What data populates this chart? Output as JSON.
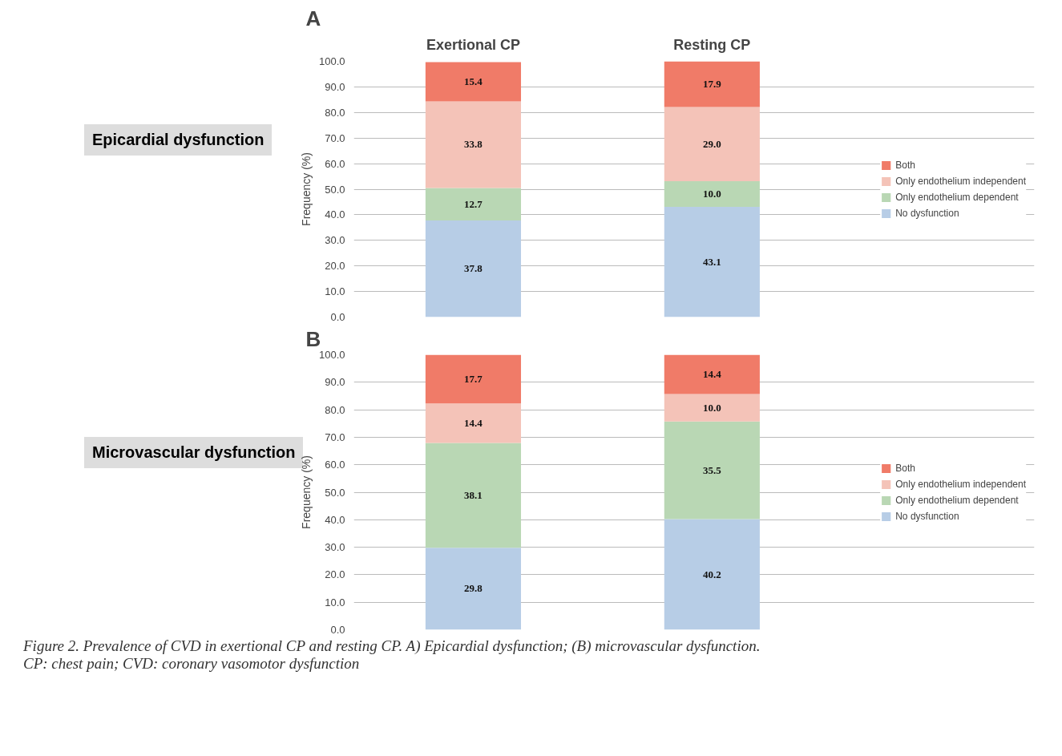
{
  "chart_data": [
    {
      "type": "bar",
      "stacked": true,
      "title": "A",
      "subtitle": "Epicardial dysfunction",
      "ylabel": "Frequency (%)",
      "categories": [
        "Exertional CP",
        "Resting CP"
      ],
      "ylim": [
        0,
        100
      ],
      "yticks": [
        {
          "value": 0,
          "label": "0.0"
        },
        {
          "value": 10,
          "label": "10.0"
        },
        {
          "value": 20,
          "label": "20.0"
        },
        {
          "value": 30,
          "label": "30.0"
        },
        {
          "value": 40,
          "label": "40.0"
        },
        {
          "value": 50,
          "label": "50.0"
        },
        {
          "value": 60,
          "label": "60.0"
        },
        {
          "value": 70,
          "label": "70.0"
        },
        {
          "value": 80,
          "label": "80.0"
        },
        {
          "value": 90,
          "label": "90.0"
        },
        {
          "value": 100,
          "label": "100.0"
        }
      ],
      "grid": "y",
      "legend": "right",
      "series": [
        {
          "name": "No dysfunction",
          "color": "#b7cde6",
          "values": [
            37.8,
            43.1
          ],
          "value_labels": [
            "37.8",
            "43.1"
          ]
        },
        {
          "name": "Only endothelium dependent",
          "color": "#b9d7b4",
          "values": [
            12.7,
            10.0
          ],
          "value_labels": [
            "12.7",
            "10.0"
          ]
        },
        {
          "name": "Only endothelium independent",
          "color": "#f4c3b8",
          "values": [
            33.8,
            29.0
          ],
          "value_labels": [
            "33.8",
            "29.0"
          ]
        },
        {
          "name": "Both",
          "color": "#f07b68",
          "values": [
            15.4,
            17.9
          ],
          "value_labels": [
            "15.4",
            "17.9"
          ]
        }
      ]
    },
    {
      "type": "bar",
      "stacked": true,
      "title": "B",
      "subtitle": "Microvascular dysfunction",
      "ylabel": "Frequency (%)",
      "categories": [
        null,
        null
      ],
      "ylim": [
        0,
        100
      ],
      "yticks": [
        {
          "value": 0,
          "label": "0.0"
        },
        {
          "value": 10,
          "label": "10.0"
        },
        {
          "value": 20,
          "label": "20.0"
        },
        {
          "value": 30,
          "label": "30.0"
        },
        {
          "value": 40,
          "label": "40.0"
        },
        {
          "value": 50,
          "label": "50.0"
        },
        {
          "value": 60,
          "label": "60.0"
        },
        {
          "value": 70,
          "label": "70.0"
        },
        {
          "value": 80,
          "label": "80.0"
        },
        {
          "value": 90,
          "label": "90.0"
        },
        {
          "value": 100,
          "label": "100.0"
        }
      ],
      "grid": "y",
      "legend": "right",
      "annotations": [
        "Figure 2. Prevalence of CVD in exertional CP and resting CP. A) Epicardial dysfunction; (B) microvascular dysfunction.",
        "CP: chest pain; CVD: coronary vasomotor dysfunction"
      ],
      "series": [
        {
          "name": "No dysfunction",
          "color": "#b7cde6",
          "values": [
            29.8,
            40.2
          ],
          "value_labels": [
            "29.8",
            "40.2"
          ]
        },
        {
          "name": "Only endothelium dependent",
          "color": "#b9d7b4",
          "values": [
            38.1,
            35.5
          ],
          "value_labels": [
            "38.1",
            "35.5"
          ]
        },
        {
          "name": "Only endothelium independent",
          "color": "#f4c3b8",
          "values": [
            14.4,
            10.0
          ],
          "value_labels": [
            "14.4",
            "10.0"
          ]
        },
        {
          "name": "Both",
          "color": "#f07b68",
          "values": [
            17.7,
            14.4
          ],
          "value_labels": [
            "17.7",
            "14.4"
          ]
        }
      ]
    }
  ]
}
